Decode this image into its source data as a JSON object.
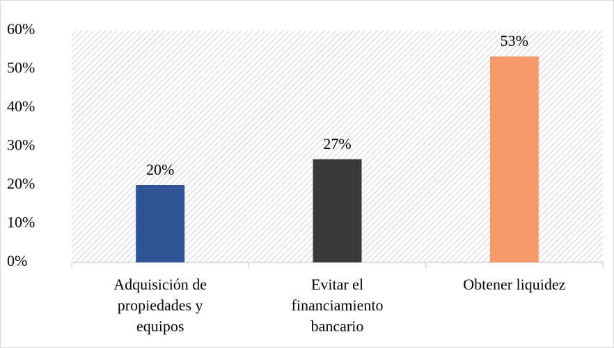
{
  "chart_data": {
    "type": "bar",
    "categories": [
      "Adquisición de\npropiedades y\nequipos",
      "Evitar el\nfinanciamiento\nbancario",
      "Obtener liquidez"
    ],
    "values": [
      20,
      26.7,
      53.3
    ],
    "value_labels": [
      "20%",
      "27%",
      "53%"
    ],
    "colors": [
      "#2f5597",
      "#3a3a3a",
      "#f79a68"
    ],
    "ylim": [
      0,
      60
    ],
    "yticks": [
      {
        "value": 0,
        "label": "0%"
      },
      {
        "value": 10,
        "label": "10%"
      },
      {
        "value": 20,
        "label": "20%"
      },
      {
        "value": 30,
        "label": "30%"
      },
      {
        "value": 40,
        "label": "40%"
      },
      {
        "value": 50,
        "label": "50%"
      },
      {
        "value": 60,
        "label": "60%"
      }
    ]
  }
}
